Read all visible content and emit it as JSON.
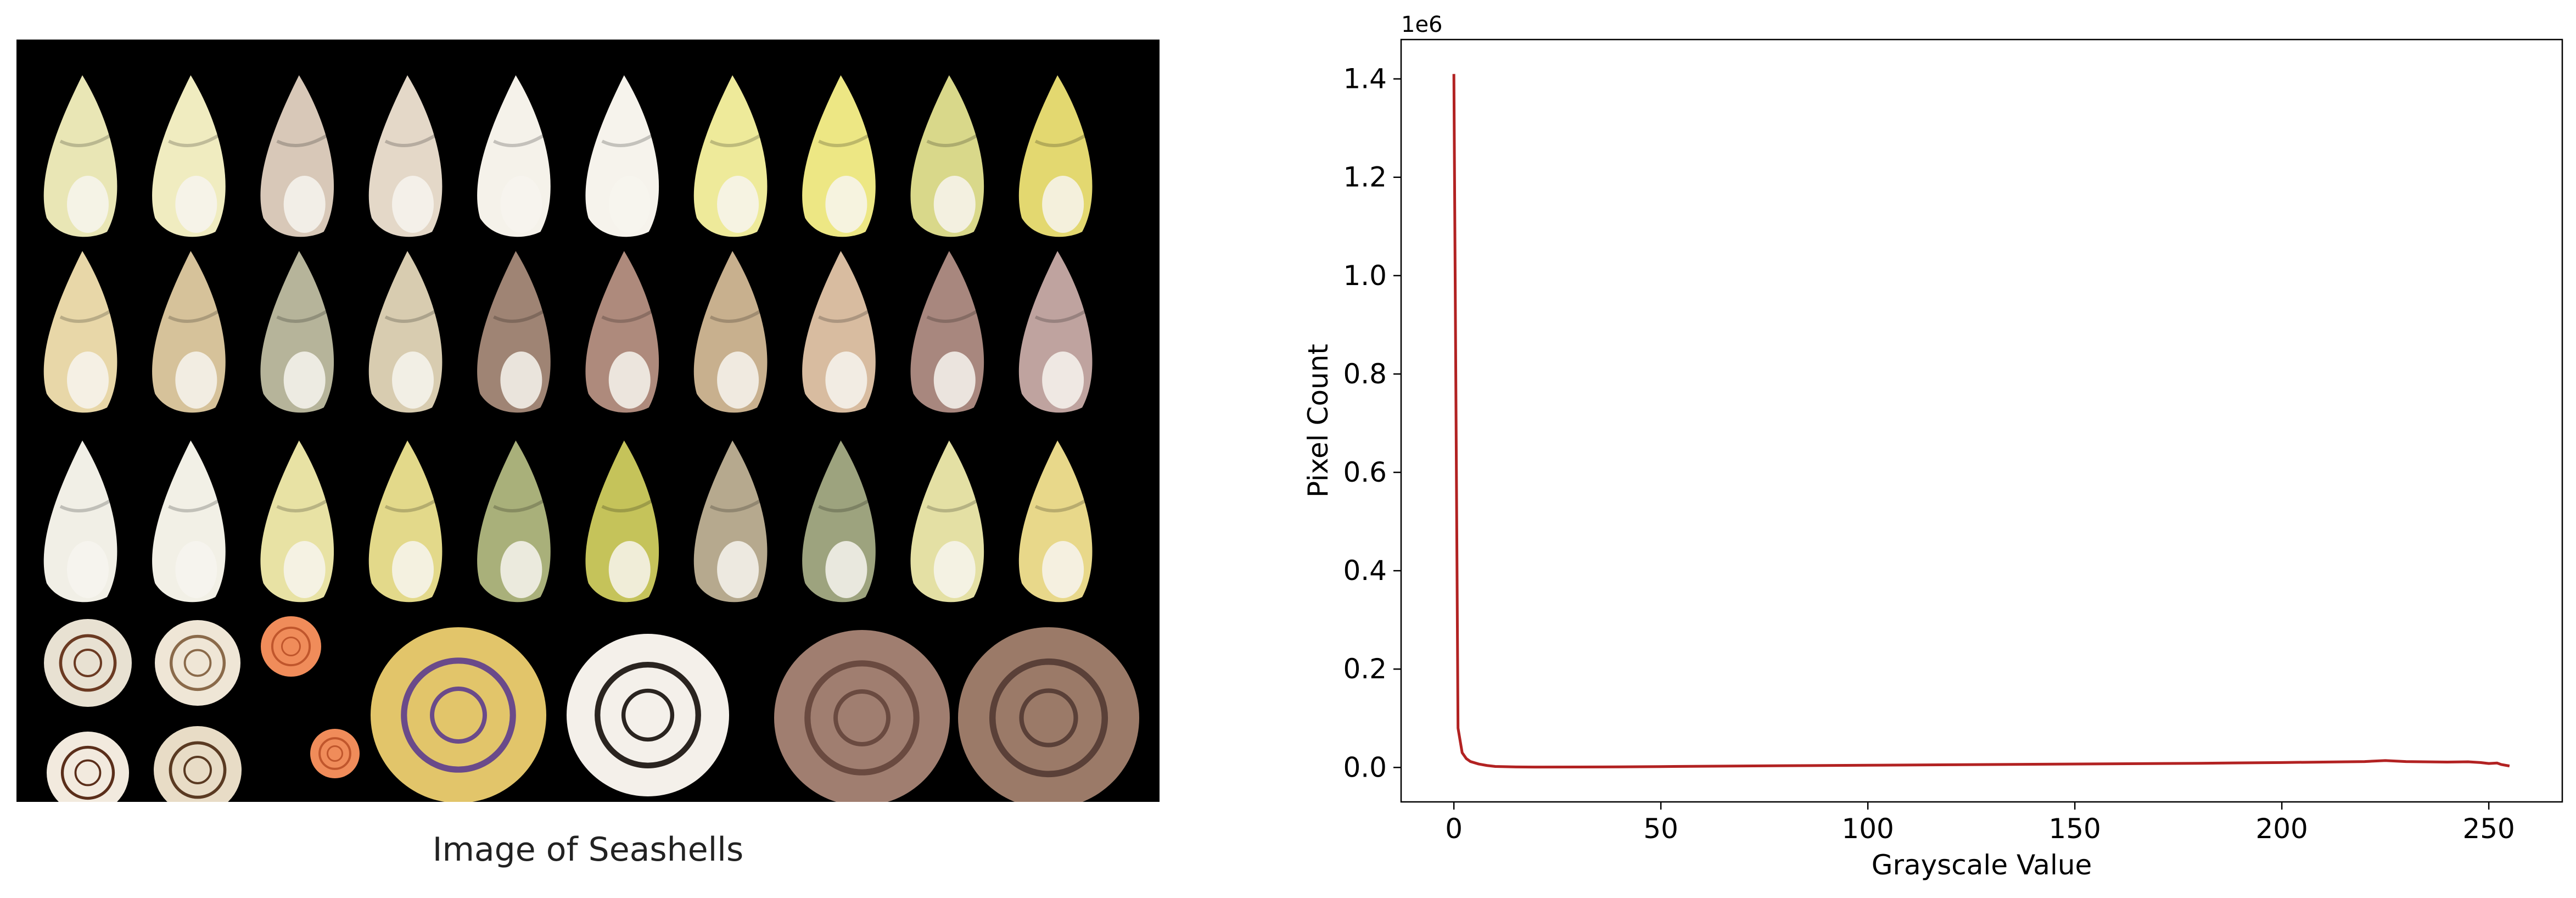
{
  "photo": {
    "caption": "Image of Seashells",
    "subject": "seashells on black background"
  },
  "chart_data": {
    "type": "line",
    "title": "",
    "xlabel": "Grayscale Value",
    "ylabel": "Pixel Count",
    "y_offset_label": "1e6",
    "xlim": [
      -12.75,
      267.75
    ],
    "ylim": [
      -70000,
      1480000
    ],
    "x_ticks": [
      0,
      50,
      100,
      150,
      200,
      250
    ],
    "x_tick_labels": [
      "0",
      "50",
      "100",
      "150",
      "200",
      "250"
    ],
    "y_ticks": [
      0,
      200000,
      400000,
      600000,
      800000,
      1000000,
      1200000,
      1400000
    ],
    "y_tick_labels": [
      "0.0",
      "0.2",
      "0.4",
      "0.6",
      "0.8",
      "1.0",
      "1.2",
      "1.4"
    ],
    "grid": false,
    "series": [
      {
        "color": "#b22222",
        "x": [
          0,
          1,
          2,
          3,
          4,
          6,
          8,
          10,
          15,
          20,
          30,
          40,
          50,
          60,
          80,
          100,
          120,
          140,
          160,
          180,
          200,
          210,
          220,
          225,
          230,
          240,
          245,
          248,
          250,
          252,
          253,
          255
        ],
        "y": [
          1410000,
          80000,
          30000,
          18000,
          12000,
          7000,
          4000,
          2000,
          1000,
          800,
          900,
          1200,
          1800,
          2500,
          3500,
          4500,
          5500,
          6500,
          7500,
          8500,
          10000,
          11000,
          12000,
          14000,
          12000,
          11000,
          11500,
          10000,
          8000,
          9000,
          6000,
          3000
        ]
      }
    ]
  }
}
